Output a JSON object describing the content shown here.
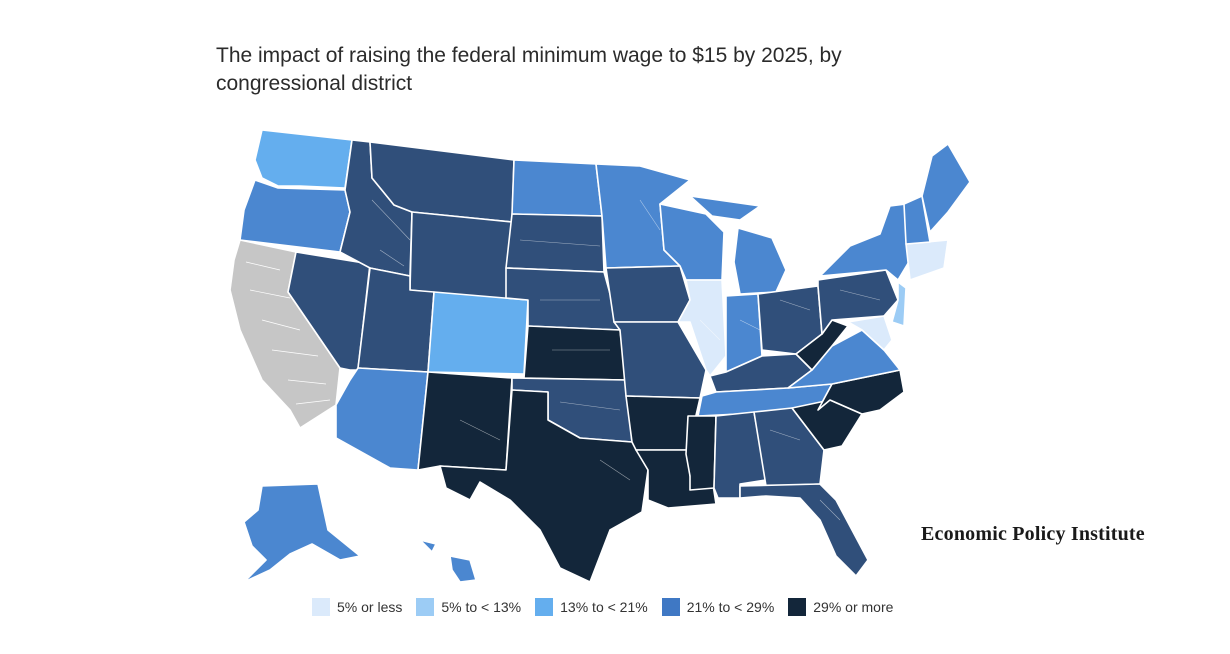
{
  "title": "The impact of raising the federal minimum wage to $15 by 2025, by congressional district",
  "publisher": "Economic Policy Institute",
  "colors": {
    "no_data": "#c6c6c6",
    "b1": "#dbeafb",
    "b2": "#9cccf5",
    "b3": "#64aeee",
    "b4": "#4b87d0",
    "b5": "#304f7a",
    "b6": "#13263a"
  },
  "legend": [
    {
      "label": "5% or less",
      "color": "#dbeafb"
    },
    {
      "label": "5% to < 13%",
      "color": "#9cccf5"
    },
    {
      "label": "13% to < 21%",
      "color": "#64aeee"
    },
    {
      "label": "21% to < 29%",
      "color": "#3f78c4"
    },
    {
      "label": "29% or more",
      "color": "#13263a"
    }
  ]
}
